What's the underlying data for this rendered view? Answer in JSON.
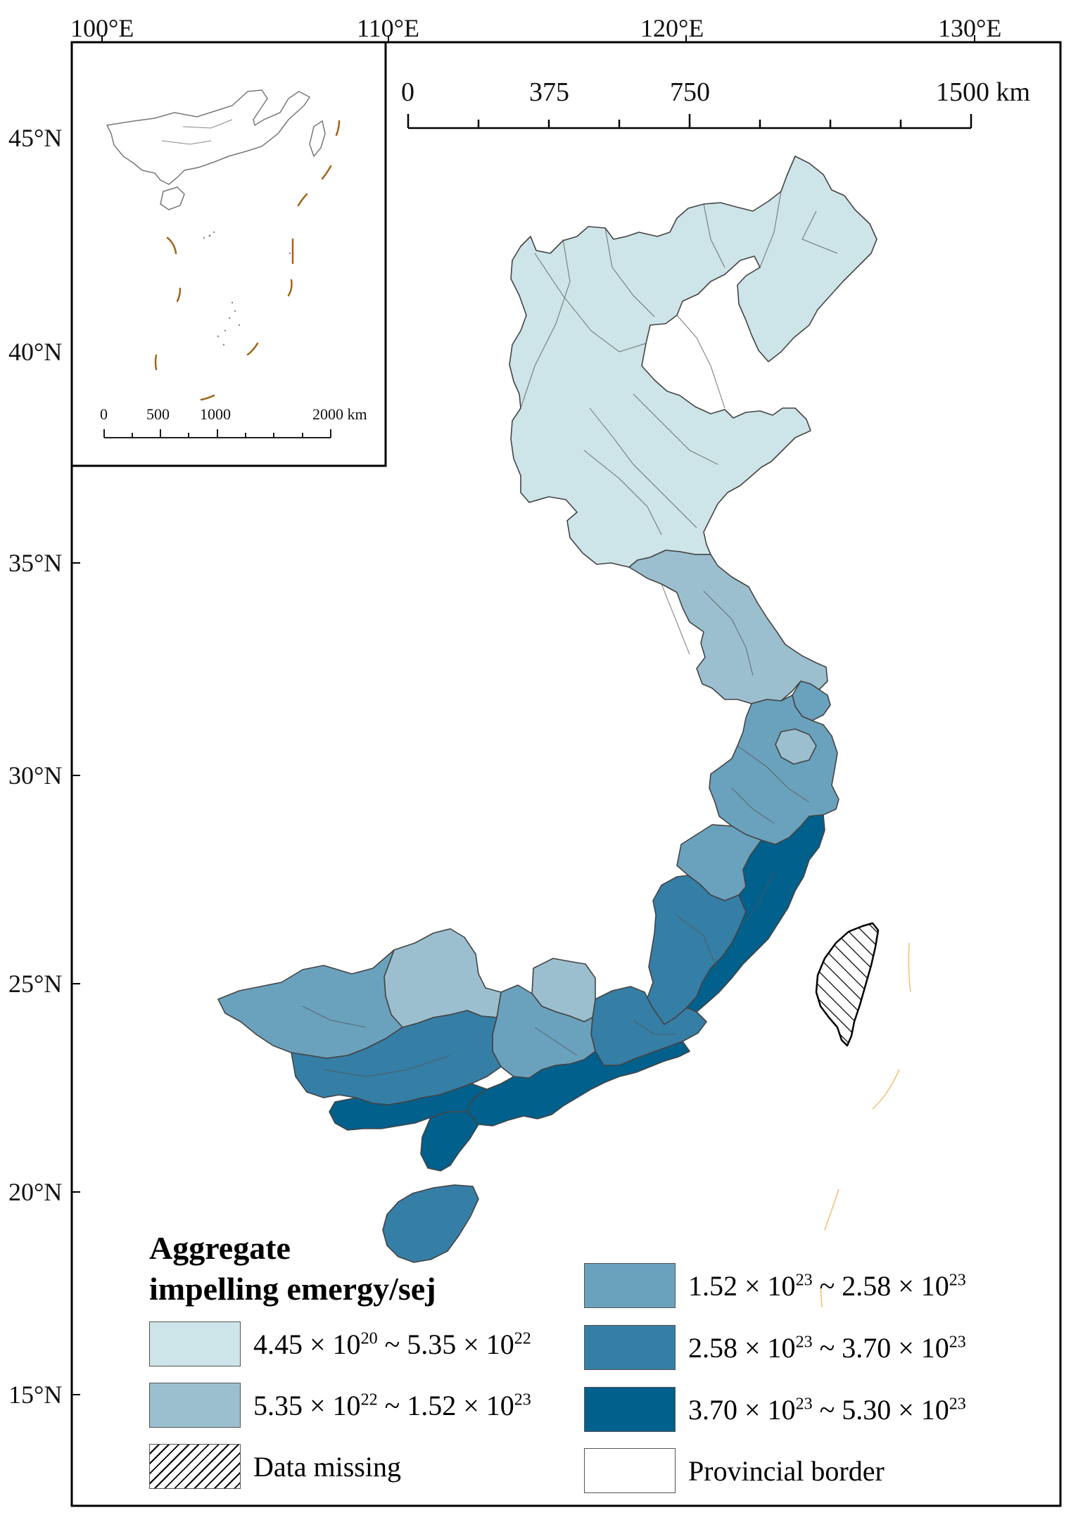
{
  "map": {
    "lon_ticks": [
      "100°E",
      "110°E",
      "120°E",
      "130°E"
    ],
    "lat_ticks": [
      "45°N",
      "40°N",
      "35°N",
      "30°N",
      "25°N",
      "20°N",
      "15°N"
    ],
    "scale_bar": {
      "labels": [
        "0",
        "375",
        "750",
        "1500 km"
      ]
    },
    "inset_scale_bar": {
      "labels": [
        "0",
        "500",
        "1000",
        "2000 km"
      ]
    }
  },
  "legend": {
    "title_line1": "Aggregate",
    "title_line2": "impelling emergy/sej",
    "items": [
      {
        "low_mant": "4.45",
        "low_exp": "20",
        "high_mant": "5.35",
        "high_exp": "22",
        "color": "#cde4e8"
      },
      {
        "low_mant": "5.35",
        "low_exp": "22",
        "high_mant": "1.52",
        "high_exp": "23",
        "color": "#9bbfcf"
      },
      {
        "low_mant": "1.52",
        "low_exp": "23",
        "high_mant": "2.58",
        "high_exp": "23",
        "color": "#6aa2bd"
      },
      {
        "low_mant": "2.58",
        "low_exp": "23",
        "high_mant": "3.70",
        "high_exp": "23",
        "color": "#357ea6"
      },
      {
        "low_mant": "3.70",
        "low_exp": "23",
        "high_mant": "5.30",
        "high_exp": "23",
        "color": "#02608c"
      }
    ],
    "data_missing": "Data missing",
    "provincial_border": "Provincial border"
  }
}
